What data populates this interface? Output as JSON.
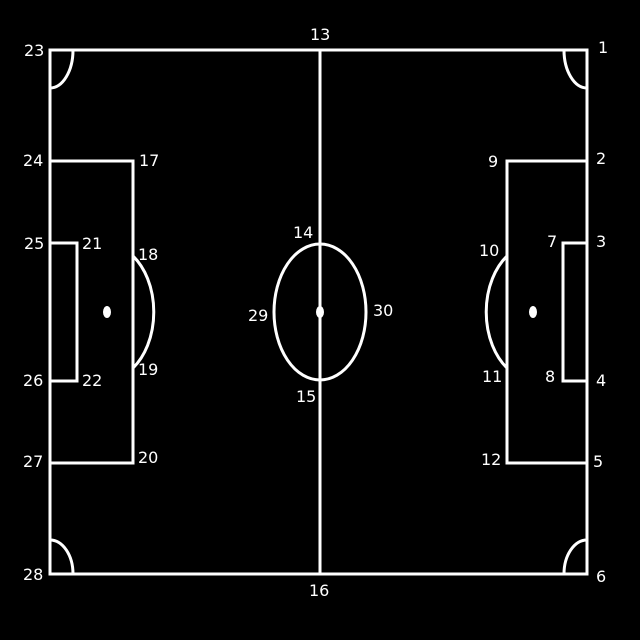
{
  "colors": {
    "background": "#000000",
    "lines": "#ffffff",
    "labels": "#ffffff"
  },
  "points": {
    "p1": "1",
    "p2": "2",
    "p3": "3",
    "p4": "4",
    "p5": "5",
    "p6": "6",
    "p7": "7",
    "p8": "8",
    "p9": "9",
    "p10": "10",
    "p11": "11",
    "p12": "12",
    "p13": "13",
    "p14": "14",
    "p15": "15",
    "p16": "16",
    "p17": "17",
    "p18": "18",
    "p19": "19",
    "p20": "20",
    "p21": "21",
    "p22": "22",
    "p23": "23",
    "p24": "24",
    "p25": "25",
    "p26": "26",
    "p27": "27",
    "p28": "28",
    "p29": "29",
    "p30": "30"
  }
}
